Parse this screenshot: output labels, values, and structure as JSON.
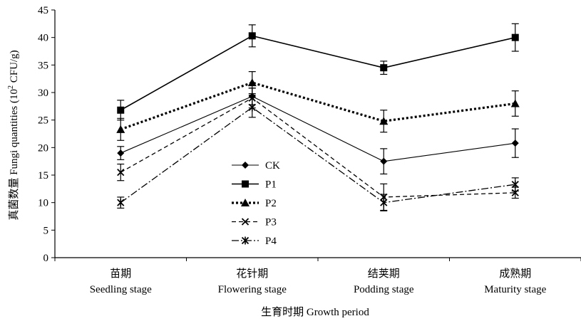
{
  "chart_data": {
    "type": "line",
    "title": "",
    "xlabel": "生育时期 Growth period",
    "ylabel": "真菌数量 Fungi quantities (10² CFU/g)",
    "ylabel_prefix": "真菌数量 Fungi quantities (10",
    "ylabel_exp": "2",
    "ylabel_suffix": " CFU/g)",
    "ylim": [
      0,
      45
    ],
    "yticks": [
      0,
      5,
      10,
      15,
      20,
      25,
      30,
      35,
      40,
      45
    ],
    "categories": [
      {
        "cn": "苗期",
        "en": "Seedling stage"
      },
      {
        "cn": "花针期",
        "en": "Flowering stage"
      },
      {
        "cn": "结荚期",
        "en": "Podding stage"
      },
      {
        "cn": "成熟期",
        "en": "Maturity stage"
      }
    ],
    "grid": false,
    "legend_position": "center-left",
    "series": [
      {
        "name": "CK",
        "values": [
          19.0,
          29.3,
          17.5,
          20.8
        ],
        "errors": [
          1.2,
          1.5,
          2.3,
          2.6
        ],
        "line_style": "solid-thin",
        "marker": "diamond"
      },
      {
        "name": "P1",
        "values": [
          26.8,
          40.3,
          34.5,
          40.0
        ],
        "errors": [
          1.8,
          2.0,
          1.2,
          2.5
        ],
        "line_style": "solid",
        "marker": "square"
      },
      {
        "name": "P2",
        "values": [
          23.3,
          31.8,
          24.8,
          28.0
        ],
        "errors": [
          2.0,
          2.0,
          2.0,
          2.3
        ],
        "line_style": "dotted-thick",
        "marker": "triangle"
      },
      {
        "name": "P3",
        "values": [
          15.5,
          29.0,
          11.0,
          11.8
        ],
        "errors": [
          1.5,
          1.8,
          2.4,
          1.0
        ],
        "line_style": "dashed",
        "marker": "x"
      },
      {
        "name": "P4",
        "values": [
          10.0,
          27.3,
          10.0,
          13.3
        ],
        "errors": [
          1.0,
          1.8,
          1.5,
          1.2
        ],
        "line_style": "dash-dot",
        "marker": "star"
      }
    ]
  }
}
